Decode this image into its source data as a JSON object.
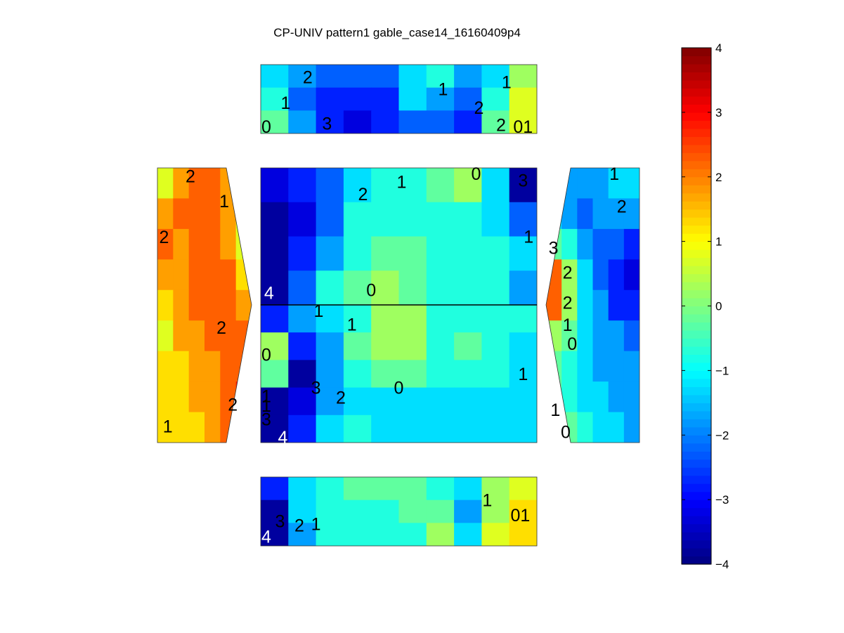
{
  "chart_data": {
    "type": "heatmap",
    "title": "CP-UNIV pattern1 gable_case14_16160409p4",
    "colormap": "jet",
    "clim": [
      -4,
      4
    ],
    "colorbar": {
      "location": "right",
      "ticks": [
        "4",
        "3",
        "2",
        "1",
        "0",
        "−1",
        "−2",
        "−3",
        "−4"
      ]
    },
    "panels": [
      {
        "name": "top-wall",
        "columns": 10,
        "values": [
          [
            -1.5,
            -2.0,
            -2.3,
            -2.5,
            -2.2,
            -1.3,
            -0.9,
            -1.7,
            -1.2,
            0.4
          ],
          [
            -1.0,
            -2.2,
            -2.8,
            -3.0,
            -2.6,
            -1.5,
            -1.8,
            -2.4,
            -0.8,
            0.6
          ],
          [
            -0.2,
            -1.8,
            -3.0,
            -3.3,
            -3.0,
            -2.2,
            -2.3,
            -2.7,
            -0.2,
            0.9
          ]
        ],
        "labels": [
          {
            "text": "2",
            "x": 0.17,
            "y": 0.18
          },
          {
            "text": "1",
            "x": 0.09,
            "y": 0.55
          },
          {
            "text": "0",
            "x": 0.02,
            "y": 0.9
          },
          {
            "text": "3",
            "x": 0.24,
            "y": 0.85
          },
          {
            "text": "1",
            "x": 0.66,
            "y": 0.35
          },
          {
            "text": "2",
            "x": 0.79,
            "y": 0.62
          },
          {
            "text": "1",
            "x": 0.89,
            "y": 0.25
          },
          {
            "text": "2",
            "x": 0.87,
            "y": 0.87
          },
          {
            "text": "01",
            "x": 0.95,
            "y": 0.9
          }
        ]
      },
      {
        "name": "roof-upper",
        "columns": 10,
        "values": [
          [
            -3.3,
            -3.0,
            -2.2,
            -1.5,
            -1.0,
            -0.8,
            -0.4,
            0.0,
            -1.5,
            -3.6
          ],
          [
            -3.8,
            -3.2,
            -2.3,
            -1.0,
            -0.6,
            -0.6,
            -0.8,
            -0.9,
            -1.1,
            -2.3
          ],
          [
            -4.2,
            -3.0,
            -1.6,
            -0.6,
            -0.2,
            -0.4,
            -0.6,
            -0.8,
            -1.0,
            -1.5
          ],
          [
            -4.4,
            -2.3,
            -1.0,
            -0.3,
            0.1,
            -0.3,
            -0.6,
            -0.8,
            -1.0,
            -1.8
          ]
        ],
        "labels": [
          {
            "text": "2",
            "x": 0.37,
            "y": 0.19
          },
          {
            "text": "1",
            "x": 0.51,
            "y": 0.1
          },
          {
            "text": "0",
            "x": 0.78,
            "y": 0.04
          },
          {
            "text": "3",
            "x": 0.95,
            "y": 0.09
          },
          {
            "text": "1",
            "x": 0.97,
            "y": 0.5
          },
          {
            "text": "0",
            "x": 0.4,
            "y": 0.89
          },
          {
            "text": "4",
            "x": 0.03,
            "y": 0.91
          }
        ]
      },
      {
        "name": "roof-lower",
        "columns": 10,
        "values": [
          [
            -3.0,
            -2.0,
            -1.3,
            -0.6,
            0.4,
            0.3,
            -0.6,
            -0.7,
            -0.8,
            -1.0
          ],
          [
            0.2,
            -2.6,
            -1.6,
            -0.5,
            0.3,
            0.0,
            -0.7,
            -0.5,
            -1.0,
            -1.4
          ],
          [
            -0.3,
            -3.8,
            -2.0,
            -0.8,
            -0.2,
            -0.5,
            -0.7,
            -0.8,
            -0.9,
            -1.2
          ],
          [
            -3.7,
            -3.2,
            -1.8,
            -1.1,
            -1.2,
            -1.3,
            -1.4,
            -1.4,
            -1.4,
            -1.4
          ],
          [
            -4.8,
            -2.8,
            -1.3,
            -1.0,
            -1.2,
            -1.3,
            -1.4,
            -1.4,
            -1.4,
            -1.4
          ]
        ],
        "labels": [
          {
            "text": "1",
            "x": 0.21,
            "y": 0.04
          },
          {
            "text": "1",
            "x": 0.33,
            "y": 0.14
          },
          {
            "text": "0",
            "x": 0.02,
            "y": 0.36
          },
          {
            "text": "3",
            "x": 0.2,
            "y": 0.6
          },
          {
            "text": "2",
            "x": 0.29,
            "y": 0.67
          },
          {
            "text": "0",
            "x": 0.5,
            "y": 0.6
          },
          {
            "text": "1",
            "x": 0.95,
            "y": 0.5
          },
          {
            "text": "1",
            "x": 0.02,
            "y": 0.66
          },
          {
            "text": "1",
            "x": 0.02,
            "y": 0.73
          },
          {
            "text": "3",
            "x": 0.02,
            "y": 0.83
          },
          {
            "text": "4",
            "x": 0.08,
            "y": 0.96
          }
        ]
      },
      {
        "name": "bottom-wall",
        "columns": 10,
        "values": [
          [
            -3.0,
            -1.2,
            -0.7,
            -0.3,
            -0.2,
            -0.4,
            -0.6,
            -1.5,
            0.2,
            0.9
          ],
          [
            -3.6,
            -1.5,
            -1.0,
            -0.8,
            -0.7,
            -0.3,
            -0.4,
            -1.6,
            0.3,
            1.0
          ],
          [
            -4.3,
            -2.0,
            -1.0,
            -0.9,
            -0.9,
            -0.6,
            0.3,
            -1.3,
            0.5,
            1.1
          ]
        ],
        "labels": [
          {
            "text": "1",
            "x": 0.82,
            "y": 0.33
          },
          {
            "text": "01",
            "x": 0.94,
            "y": 0.55
          },
          {
            "text": "3",
            "x": 0.07,
            "y": 0.64
          },
          {
            "text": "2",
            "x": 0.14,
            "y": 0.7
          },
          {
            "text": "1",
            "x": 0.2,
            "y": 0.68
          },
          {
            "text": "4",
            "x": 0.02,
            "y": 0.86
          }
        ]
      },
      {
        "name": "left-gable",
        "columns": 6,
        "values": [
          [
            0.8,
            1.8,
            2.2,
            2.0,
            1.6,
            0.4
          ],
          [
            1.5,
            2.1,
            2.0,
            2.2,
            1.8,
            0.6
          ],
          [
            2.0,
            1.9,
            2.0,
            2.3,
            1.9,
            0.7
          ],
          [
            1.7,
            1.8,
            2.0,
            2.2,
            2.0,
            1.0
          ],
          [
            1.0,
            1.6,
            2.0,
            2.1,
            2.1,
            1.5
          ],
          [
            0.9,
            1.5,
            1.9,
            2.0,
            2.1,
            2.0
          ],
          [
            1.0,
            1.3,
            1.7,
            1.9,
            2.1,
            2.4
          ],
          [
            1.3,
            1.2,
            1.5,
            1.7,
            2.0,
            2.6
          ],
          [
            1.4,
            1.2,
            1.4,
            1.7,
            2.0,
            2.5
          ]
        ],
        "labels": [
          {
            "text": "2",
            "x": 0.35,
            "y": 0.03
          },
          {
            "text": "2",
            "x": 0.07,
            "y": 0.25
          },
          {
            "text": "2",
            "x": 0.68,
            "y": 0.58
          },
          {
            "text": "2",
            "x": 0.8,
            "y": 0.86
          },
          {
            "text": "1",
            "x": 0.11,
            "y": 0.94
          },
          {
            "text": "1",
            "x": 0.71,
            "y": 0.12
          }
        ]
      },
      {
        "name": "right-gable",
        "columns": 6,
        "values": [
          [
            -1.5,
            -1.8,
            -2.0,
            -1.6,
            -1.3,
            -1.2
          ],
          [
            -1.3,
            -1.6,
            -2.2,
            -2.0,
            -1.6,
            -2.0
          ],
          [
            -0.3,
            -1.0,
            -1.8,
            -2.3,
            -2.3,
            -2.7
          ],
          [
            2.0,
            0.2,
            -1.3,
            -2.2,
            -2.8,
            -3.1
          ],
          [
            2.2,
            0.3,
            -1.2,
            -2.0,
            -2.6,
            -3.0
          ],
          [
            0.4,
            -0.4,
            -1.3,
            -1.8,
            -2.0,
            -2.2
          ],
          [
            -0.5,
            -0.9,
            -1.5,
            -1.7,
            -1.8,
            -1.9
          ],
          [
            -0.4,
            -0.7,
            -1.2,
            -1.5,
            -1.7,
            -1.8
          ],
          [
            -0.1,
            -0.5,
            -1.0,
            -1.3,
            -1.5,
            -1.6
          ]
        ],
        "labels": [
          {
            "text": "1",
            "x": 0.73,
            "y": 0.02
          },
          {
            "text": "2",
            "x": 0.81,
            "y": 0.14
          },
          {
            "text": "3",
            "x": 0.08,
            "y": 0.29
          },
          {
            "text": "2",
            "x": 0.23,
            "y": 0.38
          },
          {
            "text": "2",
            "x": 0.23,
            "y": 0.49
          },
          {
            "text": "1",
            "x": 0.23,
            "y": 0.57
          },
          {
            "text": "0",
            "x": 0.28,
            "y": 0.64
          },
          {
            "text": "1",
            "x": 0.1,
            "y": 0.88
          },
          {
            "text": "0",
            "x": 0.21,
            "y": 0.96
          }
        ]
      }
    ]
  }
}
